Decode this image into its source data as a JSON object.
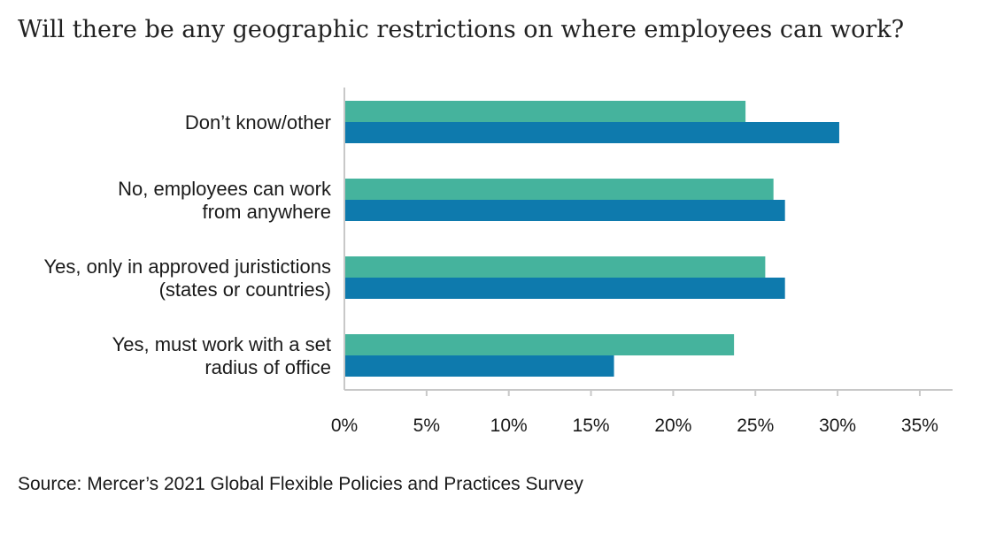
{
  "chart_data": {
    "type": "bar",
    "orientation": "horizontal",
    "title": "Will there be any geographic restrictions on where employees can work?",
    "categories": [
      [
        "Don’t know/other"
      ],
      [
        "No, employees can work",
        "from anywhere"
      ],
      [
        "Yes, only in approved juristictions",
        "(states or countries)"
      ],
      [
        "Yes,  must work with a set",
        "radius of office"
      ]
    ],
    "series": [
      {
        "color": "#45b39d",
        "values": [
          24.4,
          26.1,
          25.6,
          23.7
        ]
      },
      {
        "color": "#0e7aad",
        "values": [
          30.1,
          26.8,
          26.8,
          16.4
        ]
      }
    ],
    "xlim": [
      0,
      37
    ],
    "xticks": [
      0,
      5,
      10,
      15,
      20,
      25,
      30,
      35
    ],
    "xtick_labels": [
      "0%",
      "5%",
      "10%",
      "15%",
      "20%",
      "25%",
      "30%",
      "35%"
    ],
    "xlabel": "",
    "ylabel": "",
    "grid": false,
    "legend": "none"
  },
  "source_note": "Source: Mercer’s 2021 Global Flexible Policies and Practices Survey"
}
